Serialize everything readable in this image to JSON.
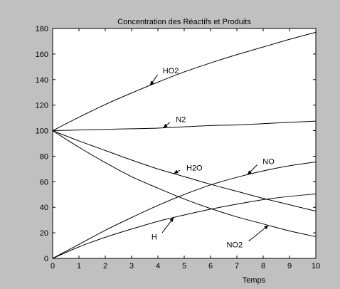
{
  "chart_data": {
    "type": "line",
    "title": "Concentration  des Réactifs et Produits",
    "xlabel": "Temps",
    "ylabel": "",
    "xlim": [
      0,
      10
    ],
    "ylim": [
      0,
      180
    ],
    "xticks": [
      0,
      1,
      2,
      3,
      4,
      5,
      6,
      7,
      8,
      9,
      10
    ],
    "yticks": [
      0,
      20,
      40,
      60,
      80,
      100,
      120,
      140,
      160,
      180
    ],
    "grid": false,
    "series": [
      {
        "name": "HO2",
        "x": [
          0,
          1,
          2,
          3,
          4,
          5,
          6,
          7,
          8,
          9,
          10
        ],
        "values": [
          100,
          110.5,
          120.5,
          129.5,
          138,
          146,
          153,
          159.5,
          165.5,
          171.5,
          177
        ]
      },
      {
        "name": "N2",
        "x": [
          0,
          1,
          2,
          3,
          4,
          5,
          6,
          7,
          8,
          9,
          10
        ],
        "values": [
          100,
          100.5,
          101,
          101.5,
          102,
          103,
          104,
          104.5,
          105.5,
          106.5,
          107.5
        ]
      },
      {
        "name": "H2O",
        "x": [
          0,
          1,
          2,
          3,
          4,
          5,
          6,
          7,
          8,
          9,
          10
        ],
        "values": [
          100,
          92,
          84.5,
          77,
          70,
          64,
          58,
          52.5,
          47,
          42,
          37
        ]
      },
      {
        "name": "NO2",
        "x": [
          0,
          1,
          2,
          3,
          4,
          5,
          6,
          7,
          8,
          9,
          10
        ],
        "values": [
          100,
          87,
          75,
          64,
          55,
          46.5,
          39,
          32.5,
          27,
          21.5,
          17
        ]
      },
      {
        "name": "NO",
        "x": [
          0,
          1,
          2,
          3,
          4,
          5,
          6,
          7,
          8,
          9,
          10
        ],
        "values": [
          0,
          11,
          22,
          32,
          41.5,
          50,
          57.5,
          63.5,
          68.5,
          72.5,
          75.5
        ]
      },
      {
        "name": "H",
        "x": [
          0,
          1,
          2,
          3,
          4,
          5,
          6,
          7,
          8,
          9,
          10
        ],
        "values": [
          0,
          9,
          16.5,
          23,
          29,
          34,
          38.5,
          42.5,
          46,
          48.5,
          50.5
        ]
      }
    ],
    "annotations": [
      {
        "text": "HO2",
        "series": "HO2",
        "at_x": 3.7,
        "label_x": 4.1,
        "label_y": 147
      },
      {
        "text": "N2",
        "series": "N2",
        "at_x": 4.2,
        "label_x": 4.6,
        "label_y": 109
      },
      {
        "text": "H2O",
        "series": "H2O",
        "at_x": 4.6,
        "label_x": 5.0,
        "label_y": 71
      },
      {
        "text": "NO",
        "series": "NO",
        "at_x": 7.4,
        "label_x": 7.9,
        "label_y": 76
      },
      {
        "text": "H",
        "series": "H",
        "at_x": 4.6,
        "label_x": 4.05,
        "label_y": 17
      },
      {
        "text": "NO2",
        "series": "NO2",
        "at_x": 8.2,
        "label_x": 7.3,
        "label_y": 11
      }
    ]
  }
}
